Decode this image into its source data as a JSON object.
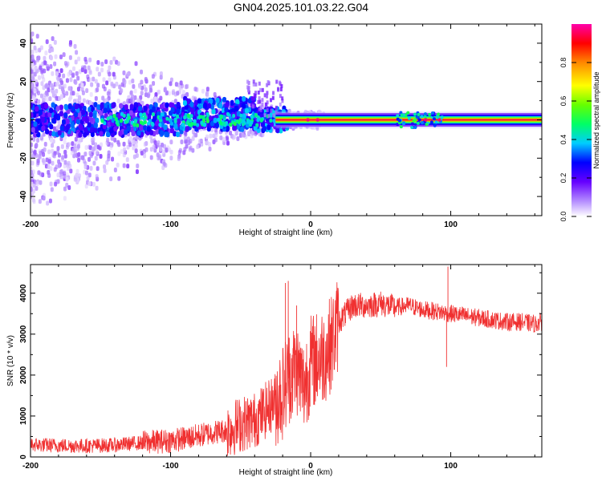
{
  "title": "GN04.2025.101.03.22.G04",
  "chart_data": [
    {
      "type": "heatmap",
      "xlabel": "Height of straight line (km)",
      "ylabel": "Frequency (Hz)",
      "xlim": [
        -200,
        165
      ],
      "ylim": [
        -50,
        50
      ],
      "xticks": [
        -200,
        -100,
        0,
        100
      ],
      "yticks": [
        -40,
        -20,
        0,
        20,
        40
      ],
      "colorbar": {
        "label": "Normalized spectral amplitude",
        "range": [
          0,
          1
        ],
        "ticks": [
          0.0,
          0.2,
          0.4,
          0.6,
          0.8
        ],
        "colormap": [
          "#ffffff",
          "#b48cff",
          "#6600ff",
          "#0000ff",
          "#00ccff",
          "#00ff66",
          "#66ff00",
          "#ffff00",
          "#ff8800",
          "#ff0000",
          "#ff00aa"
        ]
      },
      "description_points": [
        {
          "x": -200,
          "amplitude": 0.25
        },
        {
          "x": -100,
          "amplitude": 0.35
        },
        {
          "x": -40,
          "amplitude": 0.45
        },
        {
          "x": -20,
          "amplitude": 0.9
        },
        {
          "x": 0,
          "amplitude": 0.95
        },
        {
          "x": 100,
          "amplitude": 0.98
        },
        {
          "x": 165,
          "amplitude": 0.98
        }
      ]
    },
    {
      "type": "line",
      "xlabel": "Height of straight line (km)",
      "ylabel": "SNR (10 * v/v)",
      "xlim": [
        -200,
        165
      ],
      "ylim": [
        0,
        4700
      ],
      "xticks": [
        -200,
        -100,
        0,
        100
      ],
      "yticks": [
        0,
        1000,
        2000,
        3000,
        4000
      ],
      "color": "#f03030",
      "series": [
        {
          "x": [
            -200,
            -180,
            -160,
            -140,
            -120,
            -100,
            -90,
            -80,
            -70,
            -60,
            -50,
            -40,
            -30,
            -20,
            -15,
            -10,
            -5,
            0,
            5,
            10,
            15,
            20,
            30,
            40,
            50,
            60,
            70,
            80,
            90,
            100,
            110,
            120,
            130,
            140,
            150,
            160,
            165
          ],
          "values": [
            300,
            280,
            270,
            290,
            350,
            400,
            450,
            520,
            600,
            650,
            800,
            900,
            1200,
            1600,
            2000,
            2200,
            1700,
            2300,
            2400,
            2500,
            2800,
            3300,
            3700,
            3700,
            3750,
            3650,
            3700,
            3600,
            3550,
            3500,
            3450,
            3400,
            3350,
            3300,
            3300,
            3250,
            3300
          ]
        }
      ]
    }
  ]
}
